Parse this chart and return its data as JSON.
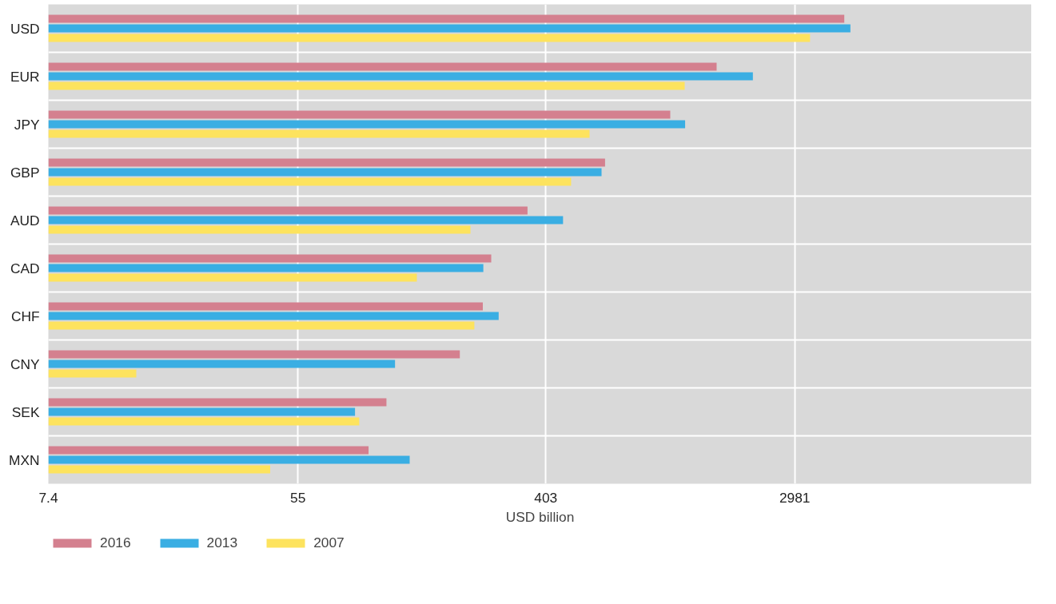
{
  "chart_data": {
    "type": "bar",
    "orientation": "horizontal",
    "log": "x",
    "xlabel": "USD billion",
    "categories": [
      "USD",
      "EUR",
      "JPY",
      "GBP",
      "AUD",
      "CAD",
      "CHF",
      "CNY",
      "SEK",
      "MXN"
    ],
    "series": [
      {
        "name": "2016",
        "color": "#d4808f",
        "values": [
          4438,
          1591,
          1096,
          649,
          348,
          260,
          243,
          202,
          112,
          97
        ]
      },
      {
        "name": "2013",
        "color": "#3aaee3",
        "values": [
          4662,
          2129,
          1235,
          631,
          463,
          244,
          276,
          120,
          87,
          135
        ]
      },
      {
        "name": "2007",
        "color": "#fde35e",
        "values": [
          3370,
          1231,
          573,
          494,
          220,
          143,
          227,
          15,
          90,
          44
        ]
      }
    ],
    "xlim": [
      7.4,
      20000
    ],
    "xticks": [
      7.4,
      55,
      403,
      2981
    ],
    "grid": true,
    "legend": "bottom left"
  }
}
